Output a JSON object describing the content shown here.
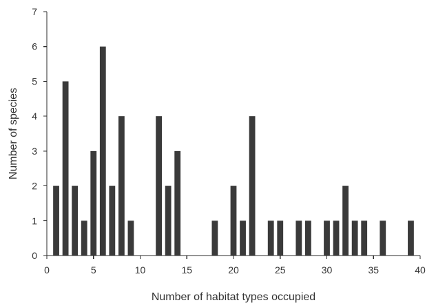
{
  "chart_data": {
    "type": "bar",
    "title": "",
    "xlabel": "Number of habitat types occupied",
    "ylabel": "Number of species",
    "xlim": [
      0,
      40
    ],
    "ylim": [
      0,
      7
    ],
    "xticks": [
      0,
      5,
      10,
      15,
      20,
      25,
      30,
      35,
      40
    ],
    "yticks": [
      0,
      1,
      2,
      3,
      4,
      5,
      6,
      7
    ],
    "grid": false,
    "legend": "none",
    "bar_color": "#3a3a3a",
    "x": [
      1,
      2,
      3,
      4,
      5,
      6,
      7,
      8,
      9,
      12,
      13,
      14,
      18,
      20,
      21,
      22,
      24,
      25,
      27,
      28,
      30,
      31,
      32,
      33,
      34,
      36,
      39
    ],
    "values": [
      2,
      5,
      2,
      1,
      3,
      6,
      2,
      4,
      1,
      4,
      2,
      3,
      1,
      2,
      1,
      4,
      1,
      1,
      1,
      1,
      1,
      1,
      2,
      1,
      1,
      1,
      1
    ]
  }
}
